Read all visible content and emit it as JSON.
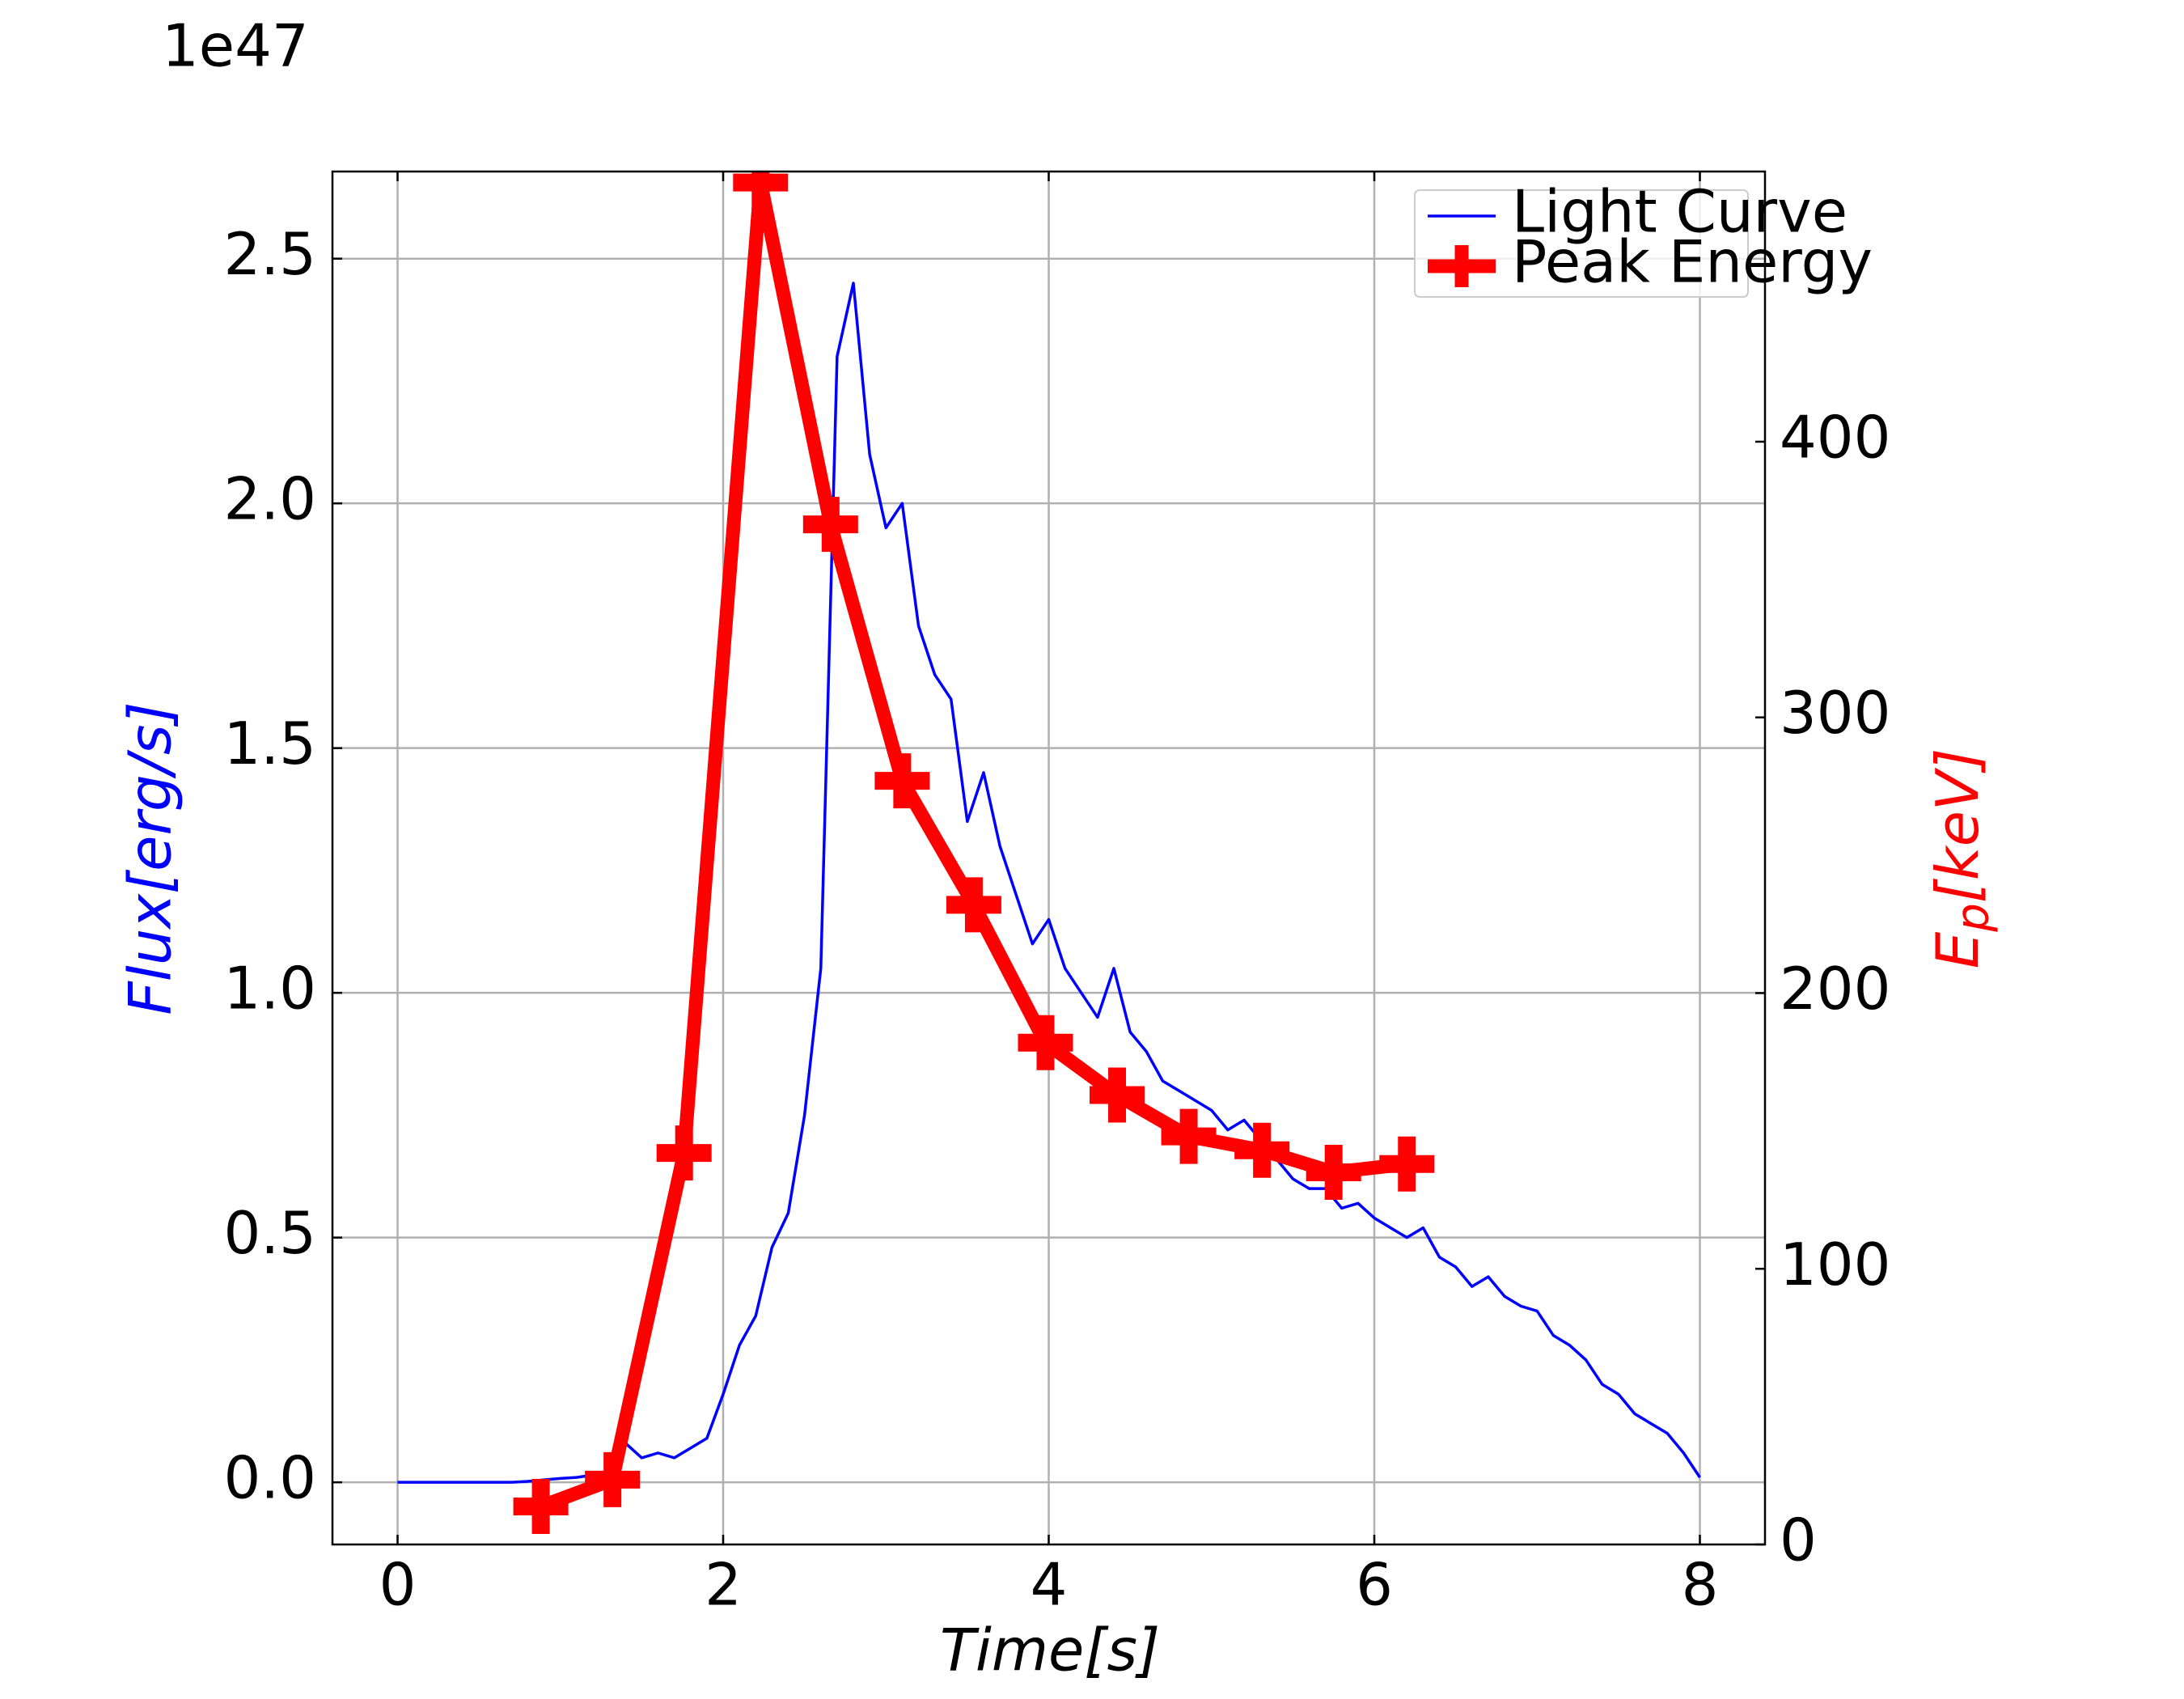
{
  "chart_data": {
    "type": "line",
    "xlabel": "Time[s]",
    "ylabel": "Flux[erg/s]",
    "y2label": [
      "E",
      "p",
      "[keV]"
    ],
    "y_offset_label": "1e47",
    "xlim": [
      -0.4,
      8.4
    ],
    "xticks": [
      0,
      2,
      4,
      6,
      8
    ],
    "ylim": [
      -0.127,
      2.678
    ],
    "yticks": [
      {
        "value": 0,
        "label": "0.0"
      },
      0.5,
      {
        "value": 1,
        "label": "1.0"
      },
      1.5,
      {
        "value": 2,
        "label": "2.0"
      },
      2.5
    ],
    "y2lim": [
      0,
      498
    ],
    "y2ticks": [
      0,
      100,
      200,
      300,
      400
    ],
    "grid": true,
    "legend": "upper right",
    "series": [
      {
        "name": "Light Curve",
        "color": "#0000ff",
        "x": [
          0,
          0.1,
          0.2,
          0.3,
          0.4,
          0.5,
          0.6,
          0.7,
          0.8,
          0.9,
          1.0,
          1.1,
          1.2,
          1.3,
          1.4,
          1.5,
          1.6,
          1.7,
          1.8,
          1.9,
          2.0,
          2.1,
          2.2,
          2.3,
          2.4,
          2.5,
          2.6,
          2.7,
          2.8,
          2.9,
          3.0,
          3.1,
          3.2,
          3.3,
          3.4,
          3.5,
          3.6,
          3.7,
          3.8,
          3.9,
          4.0,
          4.1,
          4.2,
          4.3,
          4.4,
          4.5,
          4.6,
          4.7,
          4.8,
          4.9,
          5.0,
          5.1,
          5.2,
          5.3,
          5.4,
          5.5,
          5.6,
          5.7,
          5.8,
          5.9,
          6.0,
          6.1,
          6.2,
          6.3,
          6.4,
          6.5,
          6.6,
          6.7,
          6.8,
          6.9,
          7.0,
          7.1,
          7.2,
          7.3,
          7.4,
          7.5,
          7.6,
          7.7,
          7.8,
          7.9,
          8.0
        ],
        "values": [
          0,
          0,
          0,
          0,
          0,
          0,
          0,
          0,
          0.002,
          0.005,
          0.008,
          0.01,
          0.015,
          0.02,
          0.08,
          0.05,
          0.06,
          0.05,
          0.07,
          0.09,
          0.18,
          0.28,
          0.34,
          0.48,
          0.55,
          0.75,
          1.05,
          2.3,
          2.45,
          2.1,
          1.95,
          2.0,
          1.75,
          1.65,
          1.6,
          1.35,
          1.45,
          1.3,
          1.2,
          1.1,
          1.15,
          1.05,
          1.0,
          0.95,
          1.05,
          0.92,
          0.88,
          0.82,
          0.8,
          0.78,
          0.76,
          0.72,
          0.74,
          0.7,
          0.66,
          0.62,
          0.6,
          0.6,
          0.56,
          0.57,
          0.54,
          0.52,
          0.5,
          0.52,
          0.46,
          0.44,
          0.4,
          0.42,
          0.38,
          0.36,
          0.35,
          0.3,
          0.28,
          0.25,
          0.2,
          0.18,
          0.14,
          0.12,
          0.1,
          0.06,
          0.01
        ]
      },
      {
        "name": "Peak Energy",
        "color": "#ff0000",
        "axis": "y2",
        "marker": "plus",
        "x": [
          0.88,
          1.32,
          1.76,
          2.23,
          2.66,
          3.1,
          3.54,
          3.98,
          4.42,
          4.86,
          5.31,
          5.75,
          6.2
        ],
        "values": [
          13.8,
          23.5,
          142,
          494,
          370,
          277,
          232,
          182,
          163,
          148,
          143,
          135,
          138
        ]
      }
    ]
  }
}
